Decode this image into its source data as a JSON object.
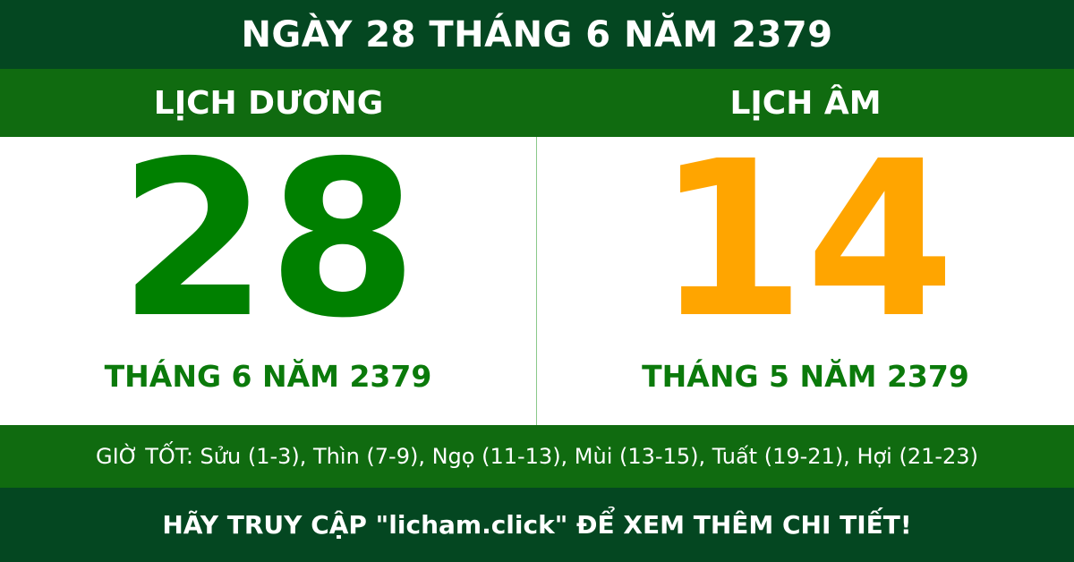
{
  "header": {
    "title": "NGÀY 28 THÁNG 6 NĂM 2379"
  },
  "solar": {
    "label": "LỊCH DƯƠNG",
    "day": "28",
    "month_year": "THÁNG 6 NĂM 2379",
    "color": "#008000"
  },
  "lunar": {
    "label": "LỊCH ÂM",
    "day": "14",
    "month_year": "THÁNG 5 NĂM 2379",
    "color": "#FFA500"
  },
  "good_hours": "GIỜ TỐT: Sửu (1-3), Thìn (7-9), Ngọ (11-13), Mùi (13-15), Tuất (19-21), Hợi (21-23)",
  "footer": {
    "cta": "HÃY TRUY CẬP \"licham.click\" ĐỂ XEM THÊM CHI TIẾT!"
  },
  "colors": {
    "dark_green": "#044721",
    "band_green": "#106b10"
  }
}
